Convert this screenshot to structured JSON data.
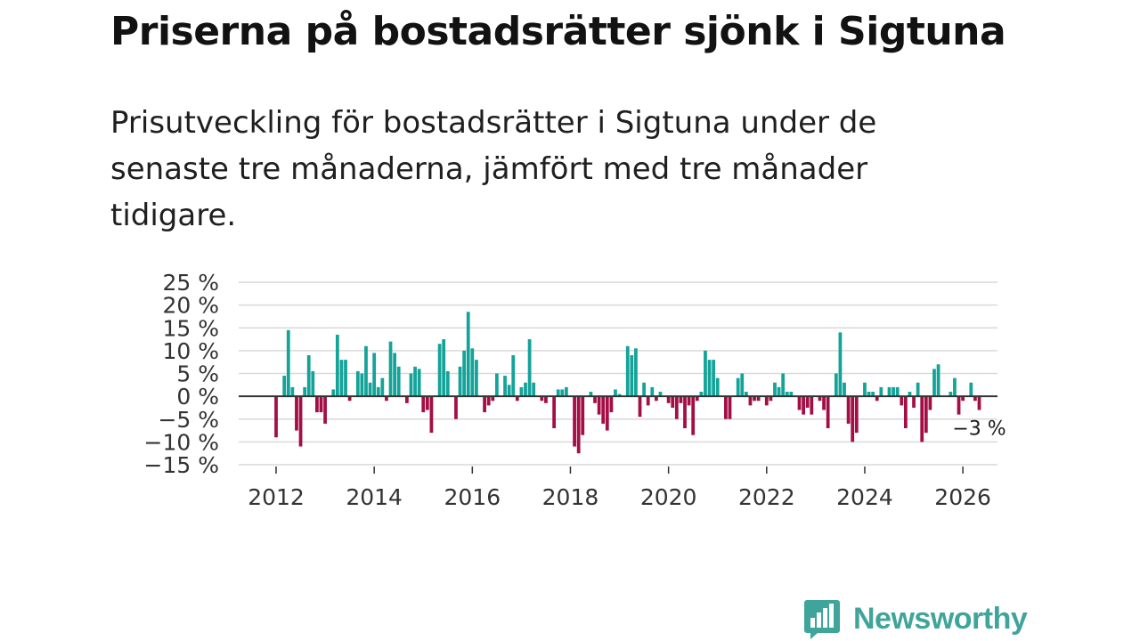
{
  "title": "Priserna på bostadsrätter sjönk i Sigtuna",
  "subtitle": "Prisutveckling för bostadsrätter i Sigtuna under de senaste tre månaderna, jämfört med tre månader tidigare.",
  "brand": {
    "name": "Newsworthy",
    "color": "#3fa59a"
  },
  "colors": {
    "positive": "#14a399",
    "negative": "#a30e45",
    "grid": "#d9d9d9",
    "zero": "#333333"
  },
  "chart_data": {
    "type": "bar",
    "title": "Priserna på bostadsrätter sjönk i Sigtuna",
    "xlabel": "",
    "ylabel": "",
    "ylim": [
      -15,
      25
    ],
    "xlim": [
      2011.1,
      2026.75
    ],
    "y_ticks": [
      25,
      20,
      15,
      10,
      5,
      0,
      -5,
      -10,
      -15
    ],
    "y_tick_labels": [
      "25 %",
      "20 %",
      "15 %",
      "10 %",
      "5 %",
      "0 %",
      "−5 %",
      "−10 %",
      "−15 %"
    ],
    "x_ticks": [
      2012,
      2014,
      2016,
      2018,
      2020,
      2022,
      2024,
      2026
    ],
    "x_tick_labels": [
      "2012",
      "2014",
      "2016",
      "2018",
      "2020",
      "2022",
      "2024",
      "2026"
    ],
    "start": 2012,
    "step_months": 1,
    "last_value_label": "−3 %",
    "values": [
      -9,
      0,
      4.5,
      14.5,
      2,
      -7.5,
      -11,
      2,
      9,
      5.5,
      -3.5,
      -3.5,
      -6,
      0,
      1.5,
      13.5,
      8,
      8,
      -1,
      0,
      5.5,
      5,
      11,
      3,
      9.5,
      2,
      4,
      -1,
      12,
      9.5,
      6.5,
      0,
      -1.5,
      5,
      6.5,
      6,
      -3.5,
      -3,
      -8,
      0,
      11.5,
      12.5,
      5.5,
      0,
      -5,
      6.5,
      10,
      18.5,
      10.5,
      8,
      0,
      -3.5,
      -2,
      -1,
      5,
      0,
      4.5,
      2.5,
      9,
      -1,
      2,
      3,
      12.5,
      3,
      0,
      -1,
      -1.5,
      0,
      -7,
      1.5,
      1.5,
      2,
      0,
      -11,
      -12.5,
      -8.5,
      0,
      1,
      -1.5,
      -4,
      -6,
      -7.5,
      -3.5,
      1.5,
      0.5,
      0,
      11,
      9,
      10.5,
      -4.5,
      3,
      -2,
      2,
      -1,
      1,
      0,
      -1.5,
      -2.5,
      -5,
      -1.5,
      -7,
      -2,
      -8.5,
      -1,
      1,
      10,
      8,
      8,
      4,
      0,
      -5,
      -5,
      0,
      4,
      5,
      1,
      -2,
      -1,
      -1,
      0,
      -2,
      -1,
      3,
      2,
      5,
      1,
      1,
      0,
      -3,
      -4,
      -2.5,
      -4,
      0,
      -1,
      -3,
      -7,
      0,
      5,
      14,
      3,
      -6,
      -10,
      -8,
      0,
      3,
      1,
      1,
      -1,
      2,
      0,
      2,
      2,
      2,
      -2,
      -7,
      1,
      -2.5,
      3,
      -10,
      -8,
      -3,
      6,
      7,
      0,
      0,
      1,
      4,
      -4,
      -1,
      0,
      3,
      -1,
      -3
    ]
  }
}
